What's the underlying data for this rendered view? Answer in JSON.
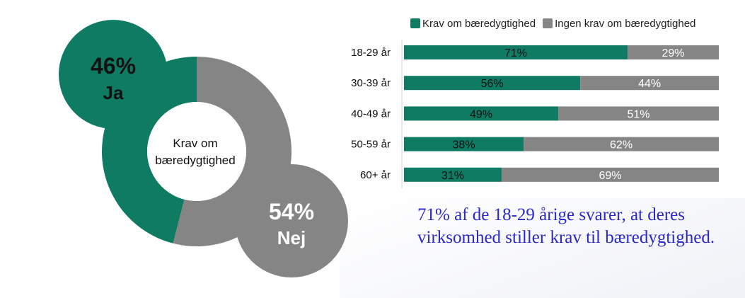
{
  "colors": {
    "krav": "#0f7b63",
    "ingen": "#858585",
    "callout": "#2a28c8"
  },
  "donut": {
    "center_label_line1": "Krav om",
    "center_label_line2": "bæredygtighed",
    "slices": [
      {
        "pct_label": "46%",
        "label": "Ja",
        "value": 46
      },
      {
        "pct_label": "54%",
        "label": "Nej",
        "value": 54
      }
    ]
  },
  "chart_data": {
    "type": "bar",
    "orientation": "horizontal",
    "stacked": true,
    "normalized": true,
    "categories": [
      "18-29 år",
      "30-39 år",
      "40-49 år",
      "50-59 år",
      "60+ år"
    ],
    "series": [
      {
        "name": "Krav om bæredygtighed",
        "values": [
          71,
          56,
          49,
          38,
          31
        ],
        "labels": [
          "71%",
          "56%",
          "49%",
          "38%",
          "31%"
        ]
      },
      {
        "name": "Ingen krav om bæredygtighed",
        "values": [
          29,
          44,
          51,
          62,
          69
        ],
        "labels": [
          "29%",
          "44%",
          "51%",
          "62%",
          "69%"
        ]
      }
    ],
    "xlim": [
      0,
      100
    ],
    "legend_position": "top"
  },
  "callout": {
    "text": "71% af de 18-29 årige svarer, at deres virksomhed stiller krav til bæredygtighed."
  }
}
